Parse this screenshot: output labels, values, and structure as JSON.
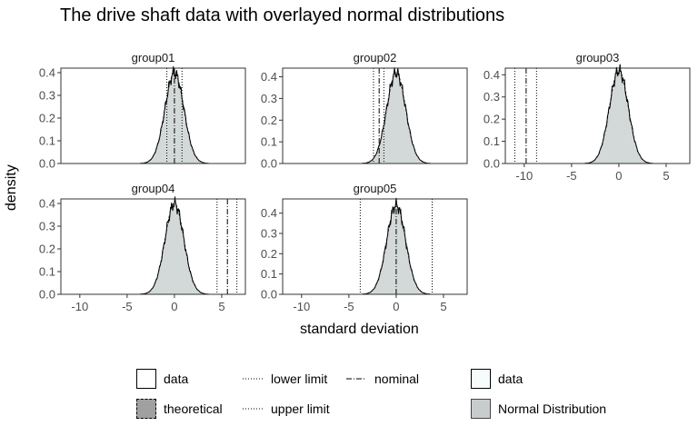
{
  "chart_data": {
    "type": "area",
    "title": "The drive shaft data with overlayed normal distributions",
    "xlabel": "standard deviation",
    "ylabel": "density",
    "xlim": [
      -12,
      7.5
    ],
    "x_ticks": [
      -10,
      -5,
      0,
      5
    ],
    "grid": false,
    "panels": [
      {
        "name": "group01",
        "ylim": [
          0,
          0.42
        ],
        "y_ticks": [
          "0.0",
          "0.1",
          "0.2",
          "0.3",
          "0.4"
        ],
        "lower_limit": -0.8,
        "nominal": 0.0,
        "upper_limit": 0.8,
        "peak": 0.4
      },
      {
        "name": "group02",
        "ylim": [
          0,
          0.44
        ],
        "y_ticks": [
          "0.0",
          "0.1",
          "0.2",
          "0.3",
          "0.4"
        ],
        "lower_limit": -2.4,
        "nominal": -1.8,
        "upper_limit": -1.3,
        "peak": 0.42
      },
      {
        "name": "group03",
        "ylim": [
          0,
          0.43
        ],
        "y_ticks": [
          "0.0",
          "0.1",
          "0.2",
          "0.3",
          "0.4"
        ],
        "lower_limit": -11.0,
        "nominal": -9.8,
        "upper_limit": -8.7,
        "peak": 0.42
      },
      {
        "name": "group04",
        "ylim": [
          0,
          0.42
        ],
        "y_ticks": [
          "0.0",
          "0.1",
          "0.2",
          "0.3",
          "0.4"
        ],
        "lower_limit": 4.5,
        "nominal": 5.6,
        "upper_limit": 6.6,
        "peak": 0.4
      },
      {
        "name": "group05",
        "ylim": [
          0,
          0.47
        ],
        "y_ticks": [
          "0.0",
          "0.1",
          "0.2",
          "0.3",
          "0.4"
        ],
        "lower_limit": -3.8,
        "nominal": 0.0,
        "upper_limit": 3.8,
        "peak": 0.44
      }
    ],
    "legend": {
      "fill": [
        "data",
        "theoretical"
      ],
      "linetype": [
        "lower limit",
        "upper limit",
        "nominal"
      ],
      "area": [
        "data",
        "Normal Distribution"
      ]
    },
    "colors": {
      "normal_fill": "#d3d9d9",
      "theoretical_fill": "#a0a0a0",
      "line": "#000000",
      "frame": "#333333",
      "tick_text": "#4d4d4d"
    }
  }
}
